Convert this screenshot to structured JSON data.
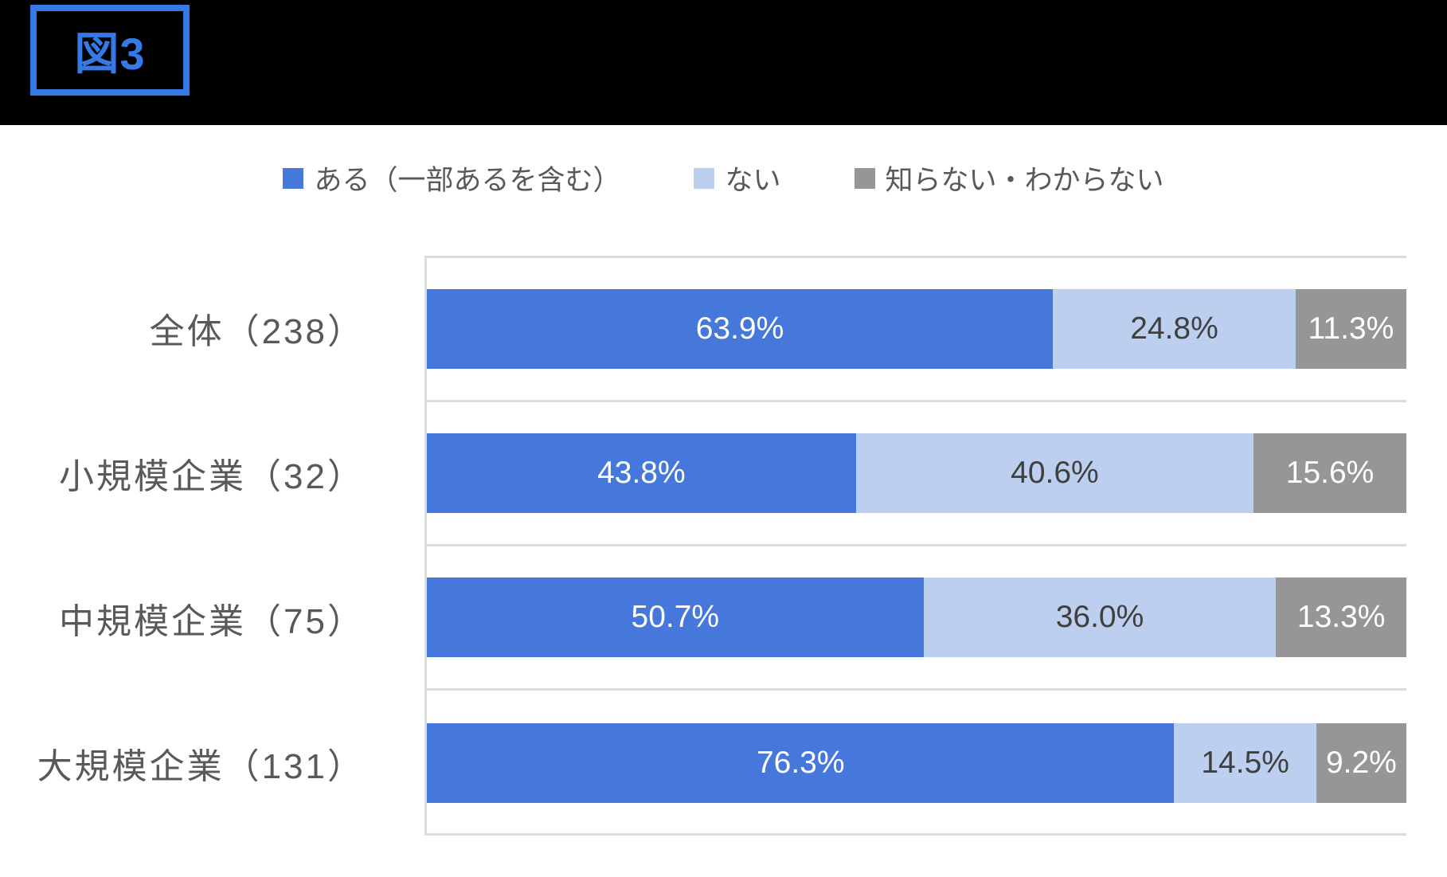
{
  "header": {
    "figure_label": "図3",
    "band_color": "#000000",
    "accent_color": "#3579E6"
  },
  "legend": {
    "position": "top-center",
    "items": [
      {
        "label": "ある（一部あるを含む）",
        "color": "#4678DB"
      },
      {
        "label": "ない",
        "color": "#BDCFEF"
      },
      {
        "label": "知らない・わからない",
        "color": "#969699"
      }
    ]
  },
  "chart_data": {
    "type": "bar",
    "orientation": "horizontal",
    "stacked": true,
    "categories": [
      "全体（238）",
      "小規模企業（32）",
      "中規模企業（75）",
      "大規模企業（131）"
    ],
    "series": [
      {
        "name": "ある（一部あるを含む）",
        "color": "#4678DB",
        "values": [
          63.9,
          43.8,
          50.7,
          76.3
        ]
      },
      {
        "name": "ない",
        "color": "#BDCFEF",
        "values": [
          24.8,
          40.6,
          36.0,
          14.5
        ]
      },
      {
        "name": "知らない・わからない",
        "color": "#969699",
        "values": [
          11.3,
          15.6,
          13.3,
          9.2
        ]
      }
    ],
    "value_labels": [
      [
        "63.9%",
        "24.8%",
        "11.3%"
      ],
      [
        "43.8%",
        "40.6%",
        "15.6%"
      ],
      [
        "50.7%",
        "36.0%",
        "13.3%"
      ],
      [
        "76.3%",
        "14.5%",
        "9.2%"
      ]
    ],
    "xlim": [
      0,
      100
    ],
    "grid": "category band separator lines only",
    "separator_color": "#DCDCDC",
    "label_color": "#595959"
  }
}
